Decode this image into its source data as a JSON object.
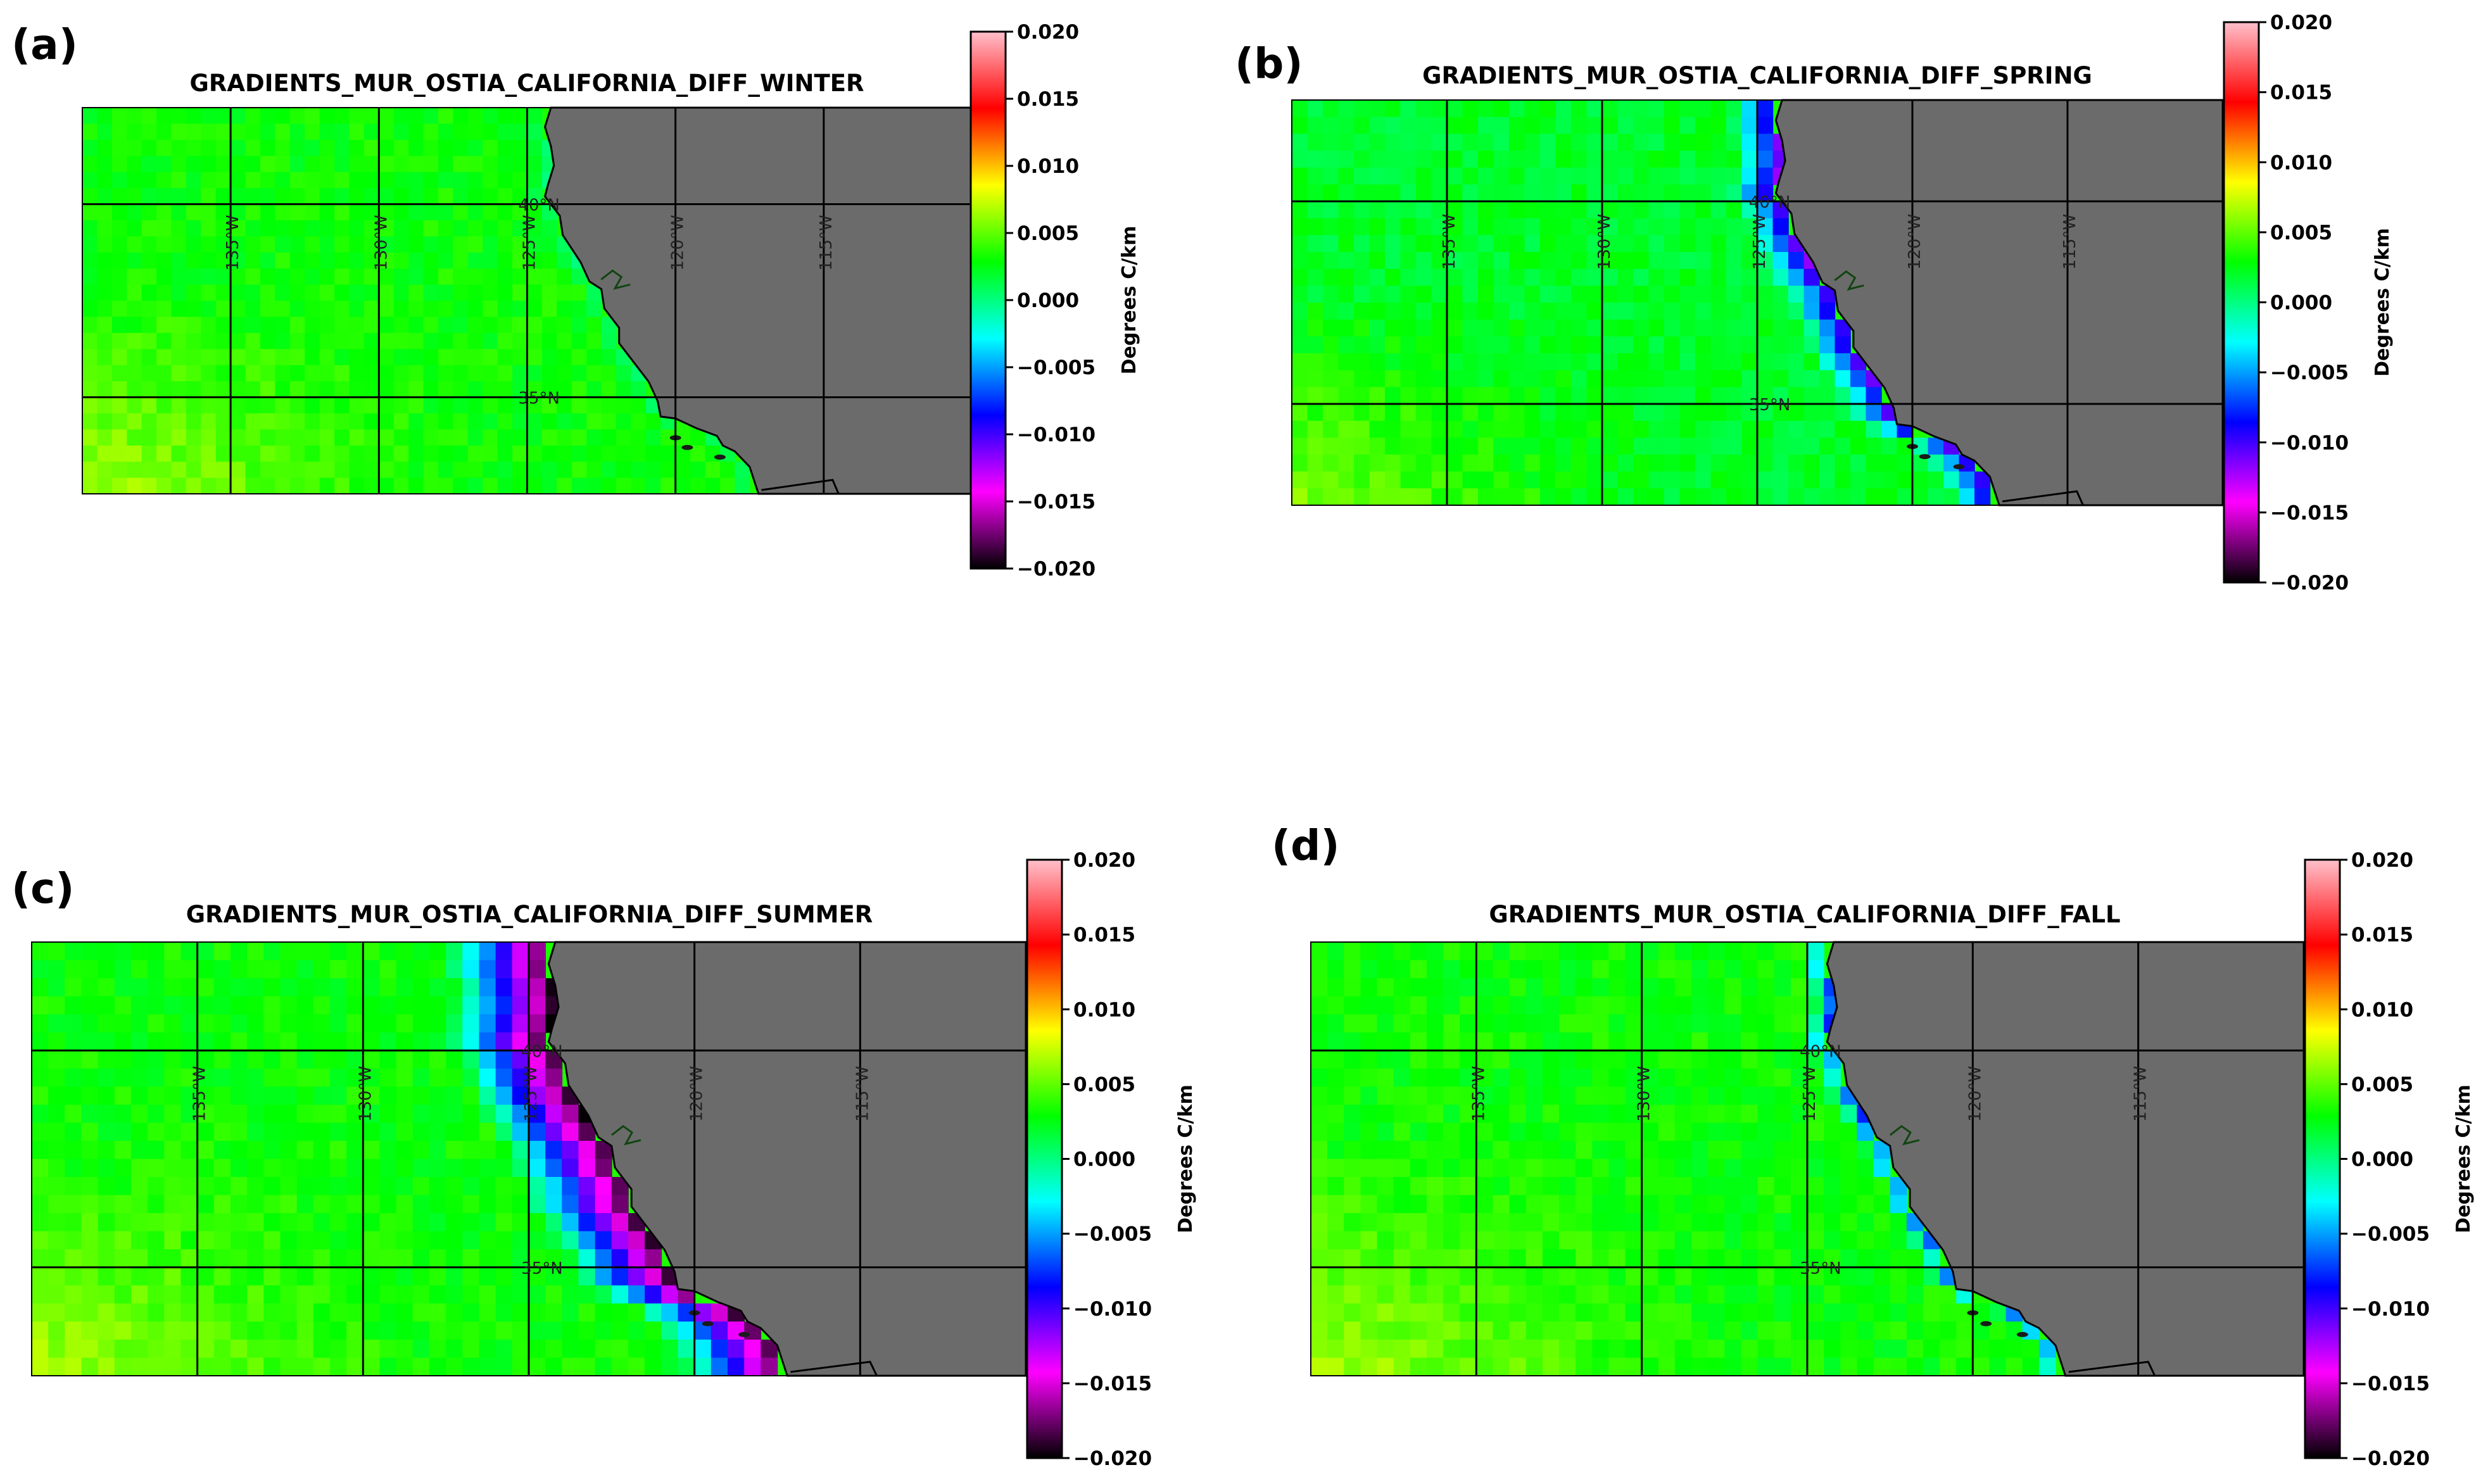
{
  "chart_data": [
    {
      "type": "heatmap",
      "panel_label": "(a)",
      "title": "GRADIENTS_MUR_OSTIA_CALIFORNIA_DIFF_WINTER",
      "season": "winter",
      "lon_labels": [
        "135°W",
        "130°W",
        "125°W",
        "120°W",
        "115°W"
      ],
      "lat_labels": [
        "40°N",
        "35°N"
      ],
      "colorbar": {
        "label": "Degrees C/km",
        "range": [
          -0.02,
          0.02
        ],
        "ticks": [
          "0.020",
          "0.015",
          "0.010",
          "0.005",
          "0.000",
          "−0.005",
          "−0.010",
          "−0.015",
          "−0.020"
        ]
      },
      "field_description": {
        "offshore_value": 0.004,
        "coastal_value": 0.0,
        "coastal_band": "narrow"
      }
    },
    {
      "type": "heatmap",
      "panel_label": "(b)",
      "title": "GRADIENTS_MUR_OSTIA_CALIFORNIA_DIFF_SPRING",
      "season": "spring",
      "lon_labels": [
        "135°W",
        "130°W",
        "125°W",
        "120°W",
        "115°W"
      ],
      "lat_labels": [
        "40°N",
        "35°N"
      ],
      "colorbar": {
        "label": "Degrees C/km",
        "range": [
          -0.02,
          0.02
        ],
        "ticks": [
          "0.020",
          "0.015",
          "0.010",
          "0.005",
          "0.000",
          "−0.005",
          "−0.010",
          "−0.015",
          "−0.020"
        ]
      },
      "field_description": {
        "offshore_value": 0.003,
        "coastal_value": -0.012,
        "coastal_band": "moderate"
      }
    },
    {
      "type": "heatmap",
      "panel_label": "(c)",
      "title": "GRADIENTS_MUR_OSTIA_CALIFORNIA_DIFF_SUMMER",
      "season": "summer",
      "lon_labels": [
        "135°W",
        "130°W",
        "125°W",
        "120°W",
        "115°W"
      ],
      "lat_labels": [
        "40°N",
        "35°N"
      ],
      "colorbar": {
        "label": "Degrees C/km",
        "range": [
          -0.02,
          0.02
        ],
        "ticks": [
          "0.020",
          "0.015",
          "0.010",
          "0.005",
          "0.000",
          "−0.005",
          "−0.010",
          "−0.015",
          "−0.020"
        ]
      },
      "field_description": {
        "offshore_value": 0.004,
        "coastal_value": -0.02,
        "coastal_band": "wide"
      }
    },
    {
      "type": "heatmap",
      "panel_label": "(d)",
      "title": "GRADIENTS_MUR_OSTIA_CALIFORNIA_DIFF_FALL",
      "season": "fall",
      "lon_labels": [
        "135°W",
        "130°W",
        "125°W",
        "120°W",
        "115°W"
      ],
      "lat_labels": [
        "40°N",
        "35°N"
      ],
      "colorbar": {
        "label": "Degrees C/km",
        "range": [
          -0.02,
          0.02
        ],
        "ticks": [
          "0.020",
          "0.015",
          "0.010",
          "0.005",
          "0.000",
          "−0.005",
          "−0.010",
          "−0.015",
          "−0.020"
        ]
      },
      "field_description": {
        "offshore_value": 0.004,
        "coastal_value": -0.008,
        "coastal_band": "narrow"
      }
    }
  ],
  "colors": {
    "land": "#6b6b6b",
    "ocean_base": "#33e633",
    "grid": "#000000",
    "colormap": [
      "#000000",
      "#ff00ff",
      "#0000ff",
      "#00ffff",
      "#00ff00",
      "#ffff00",
      "#ff0000",
      "#ffc0cb"
    ]
  }
}
